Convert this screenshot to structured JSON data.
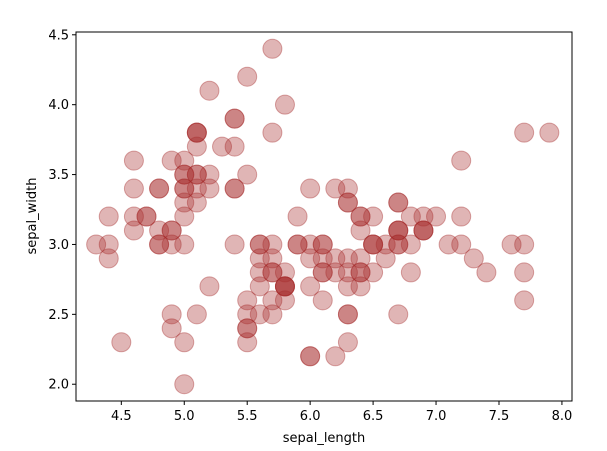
{
  "chart_data": {
    "type": "scatter",
    "title": "",
    "xlabel": "sepal_length",
    "ylabel": "sepal_width",
    "xlim": [
      4.14,
      8.08
    ],
    "ylim": [
      1.88,
      4.52
    ],
    "xticks": [
      4.5,
      5.0,
      5.5,
      6.0,
      6.5,
      7.0,
      7.5,
      8.0
    ],
    "xtick_labels": [
      "4.5",
      "5.0",
      "5.5",
      "6.0",
      "6.5",
      "7.0",
      "7.5",
      "8.0"
    ],
    "yticks": [
      2.0,
      2.5,
      3.0,
      3.5,
      4.0,
      4.5
    ],
    "ytick_labels": [
      "2.0",
      "2.5",
      "3.0",
      "3.5",
      "4.0",
      "4.5"
    ],
    "grid": false,
    "legend": "none",
    "marker_color": "#a52a2a",
    "marker_alpha": 0.35,
    "points": [
      {
        "x": 5.1,
        "y": 3.5
      },
      {
        "x": 4.9,
        "y": 3.0
      },
      {
        "x": 4.7,
        "y": 3.2
      },
      {
        "x": 4.6,
        "y": 3.1
      },
      {
        "x": 5.0,
        "y": 3.6
      },
      {
        "x": 5.4,
        "y": 3.9
      },
      {
        "x": 4.6,
        "y": 3.4
      },
      {
        "x": 5.0,
        "y": 3.4
      },
      {
        "x": 4.4,
        "y": 2.9
      },
      {
        "x": 4.9,
        "y": 3.1
      },
      {
        "x": 5.4,
        "y": 3.7
      },
      {
        "x": 4.8,
        "y": 3.4
      },
      {
        "x": 4.8,
        "y": 3.0
      },
      {
        "x": 4.3,
        "y": 3.0
      },
      {
        "x": 5.8,
        "y": 4.0
      },
      {
        "x": 5.7,
        "y": 4.4
      },
      {
        "x": 5.4,
        "y": 3.9
      },
      {
        "x": 5.1,
        "y": 3.5
      },
      {
        "x": 5.7,
        "y": 3.8
      },
      {
        "x": 5.1,
        "y": 3.8
      },
      {
        "x": 5.4,
        "y": 3.4
      },
      {
        "x": 5.1,
        "y": 3.7
      },
      {
        "x": 4.6,
        "y": 3.6
      },
      {
        "x": 5.1,
        "y": 3.3
      },
      {
        "x": 4.8,
        "y": 3.4
      },
      {
        "x": 5.0,
        "y": 3.0
      },
      {
        "x": 5.0,
        "y": 3.4
      },
      {
        "x": 5.2,
        "y": 3.5
      },
      {
        "x": 5.2,
        "y": 3.4
      },
      {
        "x": 4.7,
        "y": 3.2
      },
      {
        "x": 4.8,
        "y": 3.1
      },
      {
        "x": 5.4,
        "y": 3.4
      },
      {
        "x": 5.2,
        "y": 4.1
      },
      {
        "x": 5.5,
        "y": 4.2
      },
      {
        "x": 4.9,
        "y": 3.1
      },
      {
        "x": 5.0,
        "y": 3.2
      },
      {
        "x": 5.5,
        "y": 3.5
      },
      {
        "x": 4.9,
        "y": 3.6
      },
      {
        "x": 4.4,
        "y": 3.0
      },
      {
        "x": 5.1,
        "y": 3.4
      },
      {
        "x": 5.0,
        "y": 3.5
      },
      {
        "x": 4.5,
        "y": 2.3
      },
      {
        "x": 4.4,
        "y": 3.2
      },
      {
        "x": 5.0,
        "y": 3.5
      },
      {
        "x": 5.1,
        "y": 3.8
      },
      {
        "x": 4.8,
        "y": 3.0
      },
      {
        "x": 5.1,
        "y": 3.8
      },
      {
        "x": 4.6,
        "y": 3.2
      },
      {
        "x": 5.3,
        "y": 3.7
      },
      {
        "x": 5.0,
        "y": 3.3
      },
      {
        "x": 7.0,
        "y": 3.2
      },
      {
        "x": 6.4,
        "y": 3.2
      },
      {
        "x": 6.9,
        "y": 3.1
      },
      {
        "x": 5.5,
        "y": 2.3
      },
      {
        "x": 6.5,
        "y": 2.8
      },
      {
        "x": 5.7,
        "y": 2.8
      },
      {
        "x": 6.3,
        "y": 3.3
      },
      {
        "x": 4.9,
        "y": 2.4
      },
      {
        "x": 6.6,
        "y": 2.9
      },
      {
        "x": 5.2,
        "y": 2.7
      },
      {
        "x": 5.0,
        "y": 2.0
      },
      {
        "x": 5.9,
        "y": 3.0
      },
      {
        "x": 6.0,
        "y": 2.2
      },
      {
        "x": 6.1,
        "y": 2.9
      },
      {
        "x": 5.6,
        "y": 2.9
      },
      {
        "x": 6.7,
        "y": 3.1
      },
      {
        "x": 5.6,
        "y": 3.0
      },
      {
        "x": 5.8,
        "y": 2.7
      },
      {
        "x": 6.2,
        "y": 2.2
      },
      {
        "x": 5.6,
        "y": 2.5
      },
      {
        "x": 5.9,
        "y": 3.2
      },
      {
        "x": 6.1,
        "y": 2.8
      },
      {
        "x": 6.3,
        "y": 2.5
      },
      {
        "x": 6.1,
        "y": 2.8
      },
      {
        "x": 6.4,
        "y": 2.9
      },
      {
        "x": 6.6,
        "y": 3.0
      },
      {
        "x": 6.8,
        "y": 2.8
      },
      {
        "x": 6.7,
        "y": 3.0
      },
      {
        "x": 6.0,
        "y": 2.9
      },
      {
        "x": 5.7,
        "y": 2.6
      },
      {
        "x": 5.5,
        "y": 2.4
      },
      {
        "x": 5.5,
        "y": 2.4
      },
      {
        "x": 5.8,
        "y": 2.7
      },
      {
        "x": 6.0,
        "y": 2.7
      },
      {
        "x": 5.4,
        "y": 3.0
      },
      {
        "x": 6.0,
        "y": 3.4
      },
      {
        "x": 6.7,
        "y": 3.1
      },
      {
        "x": 6.3,
        "y": 2.3
      },
      {
        "x": 5.6,
        "y": 3.0
      },
      {
        "x": 5.5,
        "y": 2.5
      },
      {
        "x": 5.5,
        "y": 2.6
      },
      {
        "x": 6.1,
        "y": 3.0
      },
      {
        "x": 5.8,
        "y": 2.6
      },
      {
        "x": 5.0,
        "y": 2.3
      },
      {
        "x": 5.6,
        "y": 2.7
      },
      {
        "x": 5.7,
        "y": 3.0
      },
      {
        "x": 5.7,
        "y": 2.9
      },
      {
        "x": 6.2,
        "y": 2.9
      },
      {
        "x": 5.1,
        "y": 2.5
      },
      {
        "x": 5.7,
        "y": 2.8
      },
      {
        "x": 6.3,
        "y": 3.3
      },
      {
        "x": 5.8,
        "y": 2.7
      },
      {
        "x": 7.1,
        "y": 3.0
      },
      {
        "x": 6.3,
        "y": 2.9
      },
      {
        "x": 6.5,
        "y": 3.0
      },
      {
        "x": 7.6,
        "y": 3.0
      },
      {
        "x": 4.9,
        "y": 2.5
      },
      {
        "x": 7.3,
        "y": 2.9
      },
      {
        "x": 6.7,
        "y": 2.5
      },
      {
        "x": 7.2,
        "y": 3.6
      },
      {
        "x": 6.5,
        "y": 3.2
      },
      {
        "x": 6.4,
        "y": 2.7
      },
      {
        "x": 6.8,
        "y": 3.0
      },
      {
        "x": 5.7,
        "y": 2.5
      },
      {
        "x": 5.8,
        "y": 2.8
      },
      {
        "x": 6.4,
        "y": 3.2
      },
      {
        "x": 6.5,
        "y": 3.0
      },
      {
        "x": 7.7,
        "y": 3.8
      },
      {
        "x": 7.7,
        "y": 2.6
      },
      {
        "x": 6.0,
        "y": 2.2
      },
      {
        "x": 6.9,
        "y": 3.2
      },
      {
        "x": 5.6,
        "y": 2.8
      },
      {
        "x": 7.7,
        "y": 2.8
      },
      {
        "x": 6.3,
        "y": 2.7
      },
      {
        "x": 6.7,
        "y": 3.3
      },
      {
        "x": 7.2,
        "y": 3.2
      },
      {
        "x": 6.2,
        "y": 2.8
      },
      {
        "x": 6.1,
        "y": 3.0
      },
      {
        "x": 6.4,
        "y": 2.8
      },
      {
        "x": 7.2,
        "y": 3.0
      },
      {
        "x": 7.4,
        "y": 2.8
      },
      {
        "x": 7.9,
        "y": 3.8
      },
      {
        "x": 6.4,
        "y": 2.8
      },
      {
        "x": 6.3,
        "y": 2.8
      },
      {
        "x": 6.1,
        "y": 2.6
      },
      {
        "x": 7.7,
        "y": 3.0
      },
      {
        "x": 6.3,
        "y": 3.4
      },
      {
        "x": 6.4,
        "y": 3.1
      },
      {
        "x": 6.0,
        "y": 3.0
      },
      {
        "x": 6.9,
        "y": 3.1
      },
      {
        "x": 6.7,
        "y": 3.1
      },
      {
        "x": 6.9,
        "y": 3.1
      },
      {
        "x": 5.8,
        "y": 2.7
      },
      {
        "x": 6.8,
        "y": 3.2
      },
      {
        "x": 6.7,
        "y": 3.3
      },
      {
        "x": 6.7,
        "y": 3.0
      },
      {
        "x": 6.3,
        "y": 2.5
      },
      {
        "x": 6.5,
        "y": 3.0
      },
      {
        "x": 6.2,
        "y": 3.4
      },
      {
        "x": 5.9,
        "y": 3.0
      }
    ]
  }
}
